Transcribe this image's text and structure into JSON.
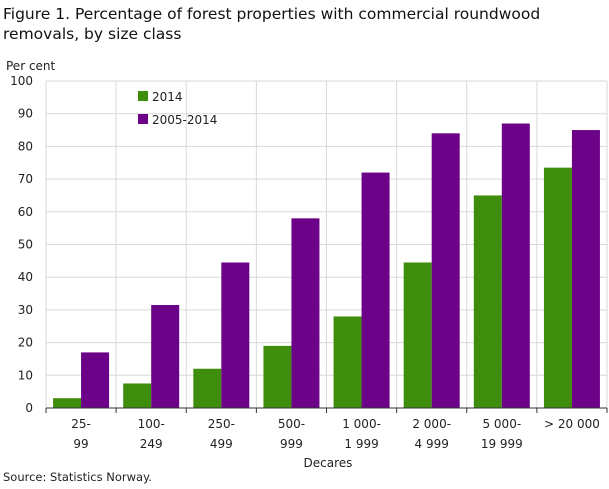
{
  "figure": {
    "title": "Figure 1. Percentage of forest properties with commercial roundwood removals, by size class",
    "source": "Source: Statistics Norway."
  },
  "colors": {
    "2014": "#3f8d0c",
    "2005-2014": "#6c0287"
  },
  "chart_data": {
    "type": "bar",
    "title": "Figure 1. Percentage of forest properties with commercial roundwood removals, by size class",
    "ylabel": "Per cent",
    "xlabel": "Decares",
    "ylim": [
      0,
      100
    ],
    "yticks": [
      0,
      10,
      20,
      30,
      40,
      50,
      60,
      70,
      80,
      90,
      100
    ],
    "grid": true,
    "legend_position": "top-left",
    "categories": [
      [
        "25-",
        "99"
      ],
      [
        "100-",
        "249"
      ],
      [
        "250-",
        "499"
      ],
      [
        "500-",
        "999"
      ],
      [
        "1 000-",
        "1 999"
      ],
      [
        "2 000-",
        "4 999"
      ],
      [
        "5 000-",
        "19 999"
      ],
      [
        "> 20 000"
      ]
    ],
    "series": [
      {
        "name": "2014",
        "values": [
          3,
          7.5,
          12,
          19,
          28,
          44.5,
          65,
          73.5
        ]
      },
      {
        "name": "2005-2014",
        "values": [
          17,
          31.5,
          44.5,
          58,
          72,
          84,
          87,
          85
        ]
      }
    ]
  }
}
